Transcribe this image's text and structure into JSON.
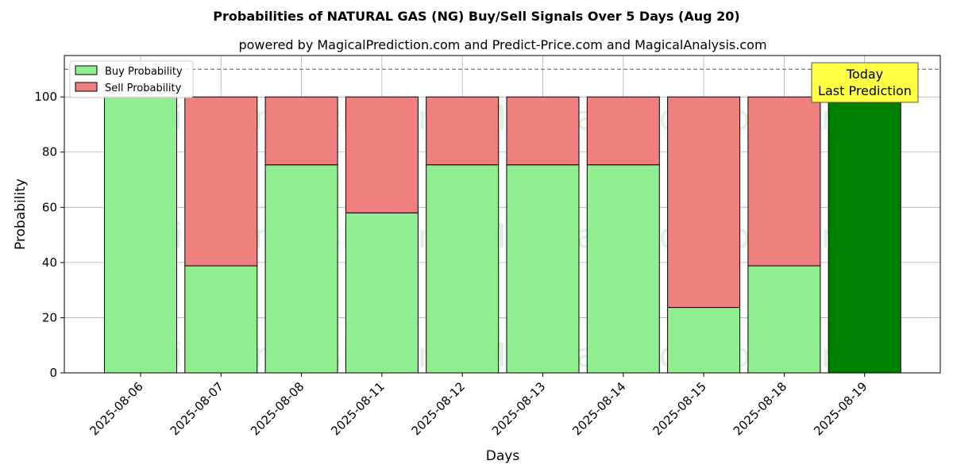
{
  "chart_data": {
    "type": "bar",
    "stacked": true,
    "title": "Probabilities of NATURAL GAS (NG) Buy/Sell Signals Over 5 Days (Aug 20)",
    "subtitle": "powered by MagicalPrediction.com and Predict-Price.com and MagicalAnalysis.com",
    "xlabel": "Days",
    "ylabel": "Probability",
    "ylim": [
      0,
      115
    ],
    "yticks": [
      0,
      20,
      40,
      60,
      80,
      100
    ],
    "grid": true,
    "legend_position": "top-left",
    "categories": [
      "2025-08-06",
      "2025-08-07",
      "2025-08-08",
      "2025-08-11",
      "2025-08-12",
      "2025-08-13",
      "2025-08-14",
      "2025-08-15",
      "2025-08-18",
      "2025-08-19"
    ],
    "series": [
      {
        "name": "Buy Probability",
        "color": "#90ee90",
        "values": [
          100,
          38.8,
          75.4,
          58.0,
          75.4,
          75.4,
          75.4,
          23.7,
          38.8,
          100
        ]
      },
      {
        "name": "Sell Probability",
        "color": "#f08080",
        "values": [
          0,
          61.2,
          24.6,
          42.0,
          24.6,
          24.6,
          24.6,
          76.3,
          61.2,
          0
        ]
      }
    ],
    "highlight": {
      "index": 9,
      "color": "#008000"
    },
    "reference_line": {
      "y": 110,
      "style": "dashed",
      "color": "#808080"
    },
    "annotation": {
      "lines": [
        "Today",
        "Last Prediction"
      ],
      "background": "#ffff44"
    },
    "watermarks": [
      "MagicalAnalysis.com",
      "MagicalPrediction.com",
      "MagicalAnalysis.com",
      "MagicalPrediction.com",
      "MagicalAnalysis.com",
      "MagicalPrediction.com"
    ]
  }
}
